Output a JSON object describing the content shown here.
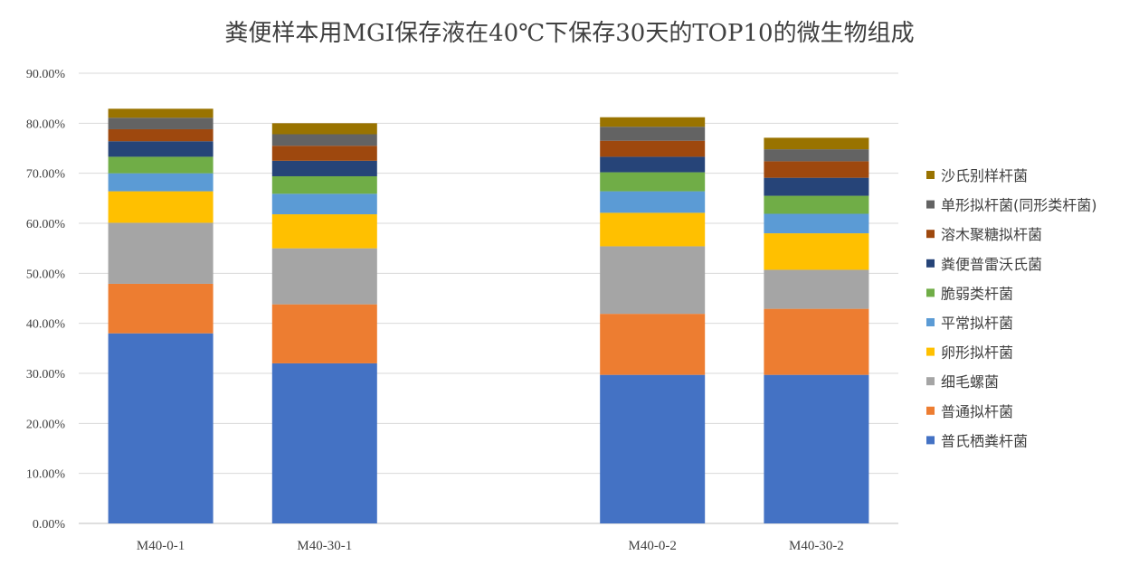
{
  "chart_data": {
    "type": "bar",
    "stacked": true,
    "title": "粪便样本用MGI保存液在40℃下保存30天的TOP10的微生物组成",
    "xlabel": "",
    "ylabel": "",
    "ylim": [
      0,
      90
    ],
    "yticks": [
      "0.00%",
      "10.00%",
      "20.00%",
      "30.00%",
      "40.00%",
      "50.00%",
      "60.00%",
      "70.00%",
      "80.00%",
      "90.00%"
    ],
    "grid": true,
    "legend_position": "right",
    "categories": [
      "M40-0-1",
      "M40-30-1",
      "",
      "M40-0-2",
      "M40-30-2"
    ],
    "series": [
      {
        "name": "普氏栖粪杆菌",
        "color": "#4472C4",
        "values": [
          38.0,
          32.0,
          null,
          29.7,
          29.7
        ]
      },
      {
        "name": "普通拟杆菌",
        "color": "#ED7D31",
        "values": [
          9.9,
          11.8,
          null,
          12.2,
          13.2
        ]
      },
      {
        "name": "细毛螺菌",
        "color": "#A5A5A5",
        "values": [
          12.2,
          11.2,
          null,
          13.5,
          7.8
        ]
      },
      {
        "name": "卵形拟杆菌",
        "color": "#FFC000",
        "values": [
          6.3,
          6.8,
          null,
          6.7,
          7.3
        ]
      },
      {
        "name": "平常拟杆菌",
        "color": "#5B9BD5",
        "values": [
          3.6,
          4.1,
          null,
          4.3,
          3.9
        ]
      },
      {
        "name": "脆弱类杆菌",
        "color": "#70AD47",
        "values": [
          3.3,
          3.5,
          null,
          3.8,
          3.6
        ]
      },
      {
        "name": "粪便普雷沃氏菌",
        "color": "#264478",
        "values": [
          3.1,
          3.1,
          null,
          3.1,
          3.6
        ]
      },
      {
        "name": "溶木聚糖拟杆菌",
        "color": "#9E480E",
        "values": [
          2.4,
          3.0,
          null,
          3.2,
          3.3
        ]
      },
      {
        "name": "单形拟杆菌(同形类杆菌)",
        "color": "#636363",
        "values": [
          2.3,
          2.3,
          null,
          2.8,
          2.4
        ]
      },
      {
        "name": "沙氏别样杆菌",
        "color": "#997300",
        "values": [
          1.8,
          2.2,
          null,
          1.9,
          2.3
        ]
      }
    ]
  }
}
